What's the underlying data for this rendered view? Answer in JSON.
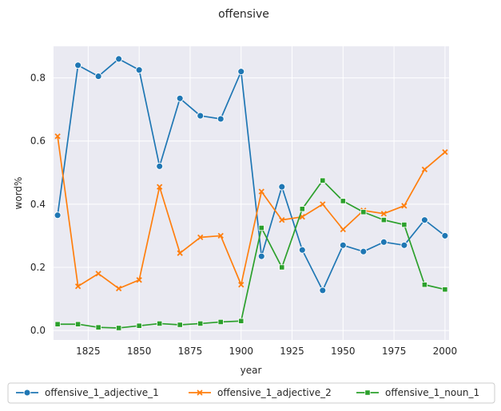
{
  "chart_data": {
    "type": "line",
    "title": "offensive",
    "xlabel": "year",
    "ylabel": "word%",
    "xlim": [
      1808,
      2002
    ],
    "ylim": [
      -0.03,
      0.9
    ],
    "xticks": [
      1825,
      1850,
      1875,
      1900,
      1925,
      1950,
      1975,
      2000
    ],
    "yticks": [
      0.0,
      0.2,
      0.4,
      0.6,
      0.8
    ],
    "grid": true,
    "legend_position": "bottom",
    "x": [
      1810,
      1820,
      1830,
      1840,
      1850,
      1860,
      1870,
      1880,
      1890,
      1900,
      1910,
      1920,
      1930,
      1940,
      1950,
      1960,
      1970,
      1980,
      1990,
      2000
    ],
    "series": [
      {
        "name": "offensive_1_adjective_1",
        "color": "#1f77b4",
        "marker": "circle",
        "values": [
          0.365,
          0.84,
          0.805,
          0.86,
          0.825,
          0.52,
          0.735,
          0.68,
          0.67,
          0.82,
          0.235,
          0.455,
          0.255,
          0.127,
          0.27,
          0.25,
          0.28,
          0.27,
          0.35,
          0.3
        ]
      },
      {
        "name": "offensive_1_adjective_2",
        "color": "#ff7f0e",
        "marker": "x",
        "values": [
          0.615,
          0.14,
          0.18,
          0.133,
          0.16,
          0.455,
          0.245,
          0.295,
          0.3,
          0.145,
          0.44,
          0.35,
          0.36,
          0.4,
          0.32,
          0.38,
          0.37,
          0.395,
          0.51,
          0.565
        ]
      },
      {
        "name": "offensive_1_noun_1",
        "color": "#2ca02c",
        "marker": "square",
        "values": [
          0.02,
          0.02,
          0.01,
          0.008,
          0.015,
          0.022,
          0.018,
          0.022,
          0.027,
          0.03,
          0.325,
          0.2,
          0.385,
          0.475,
          0.41,
          0.375,
          0.35,
          0.335,
          0.145,
          0.13
        ]
      }
    ]
  }
}
